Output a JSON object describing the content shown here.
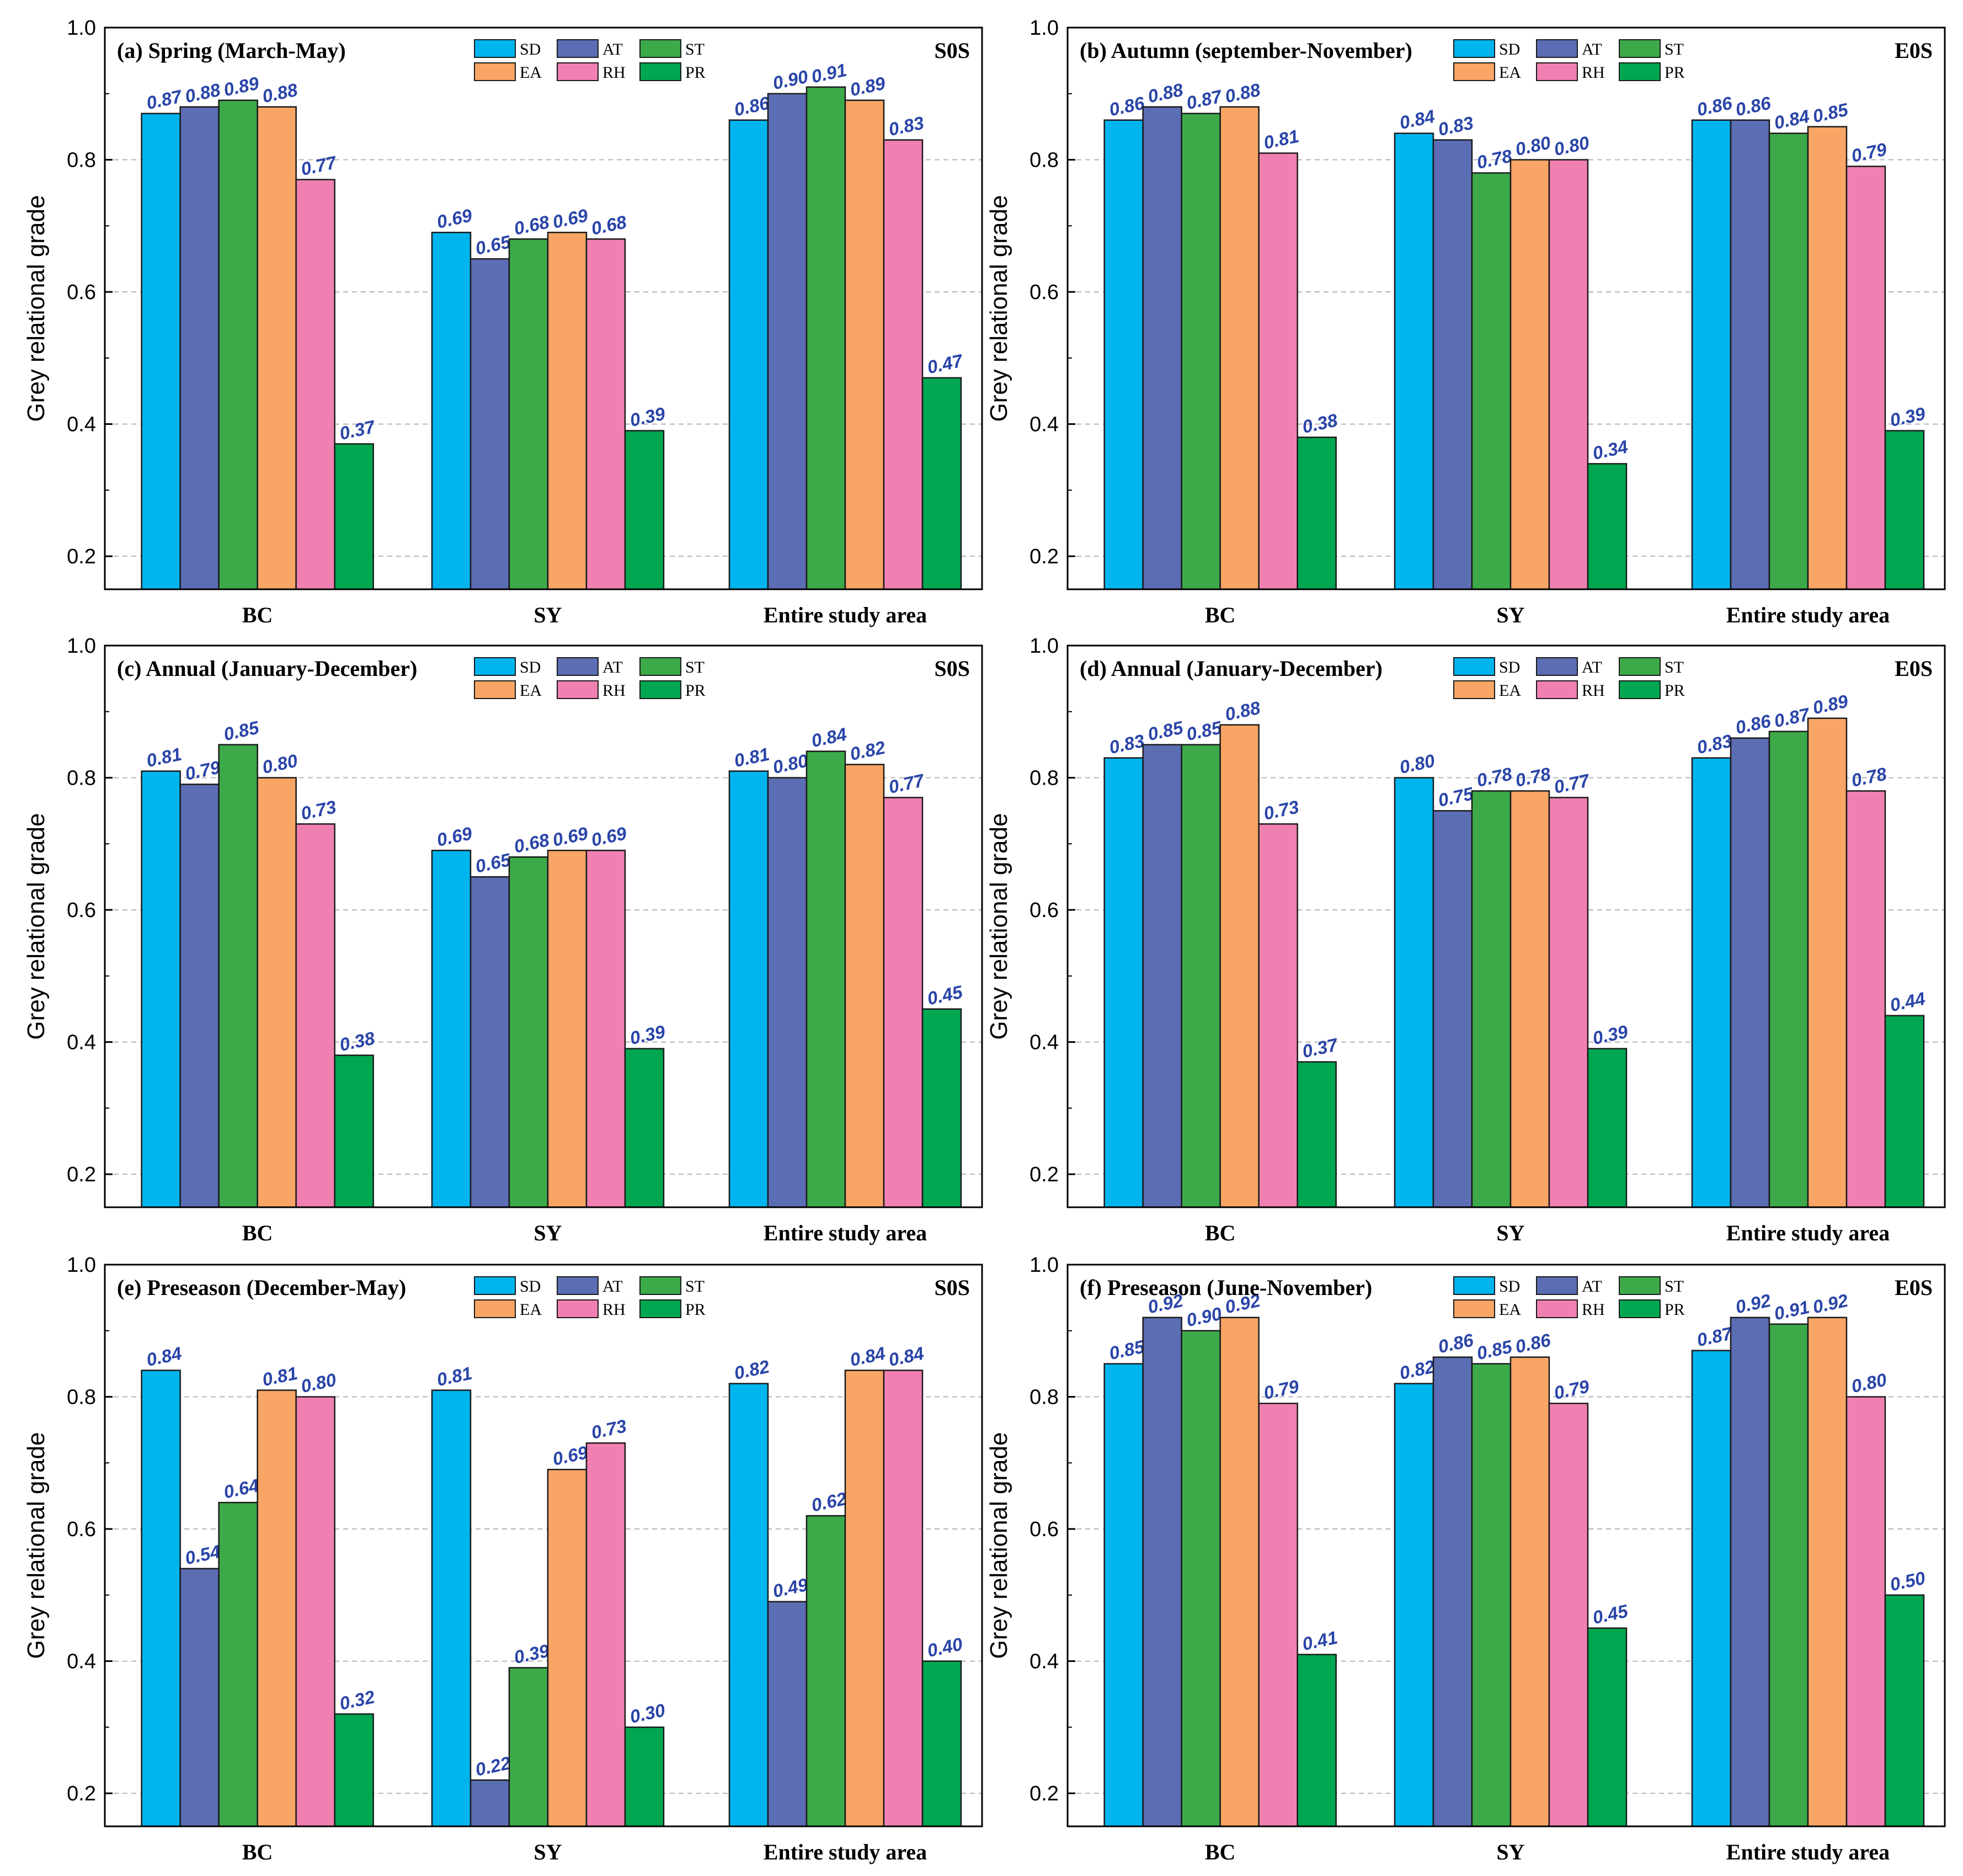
{
  "colors": {
    "SD": "#00b4ee",
    "AT": "#5b6db3",
    "ST": "#3daa4a",
    "EA": "#f8a565",
    "RH": "#f180b2",
    "PR": "#00a650"
  },
  "series_names": [
    "SD",
    "AT",
    "ST",
    "EA",
    "RH",
    "PR"
  ],
  "chart_data": [
    {
      "type": "bar",
      "title": "(a)  Spring (March-May)",
      "tag": "S0S",
      "ylabel": "Grey relational grade",
      "ylim": [
        0.15,
        1.0
      ],
      "yticks": [
        "0.2",
        "0.4",
        "0.6",
        "0.8",
        "1.0"
      ],
      "grid": "dashed",
      "legend": "top-center",
      "categories": [
        "BC",
        "SY",
        "Entire study area"
      ],
      "series": [
        {
          "name": "SD",
          "values": [
            0.87,
            0.69,
            0.86
          ]
        },
        {
          "name": "AT",
          "values": [
            0.88,
            0.65,
            0.9
          ]
        },
        {
          "name": "ST",
          "values": [
            0.89,
            0.68,
            0.91
          ]
        },
        {
          "name": "EA",
          "values": [
            0.88,
            0.69,
            0.89
          ]
        },
        {
          "name": "RH",
          "values": [
            0.77,
            0.68,
            0.83
          ]
        },
        {
          "name": "PR",
          "values": [
            0.37,
            0.39,
            0.47
          ]
        }
      ]
    },
    {
      "type": "bar",
      "title": "(b)  Autumn (september-November)",
      "tag": "E0S",
      "ylabel": "Grey relational grade",
      "ylim": [
        0.15,
        1.0
      ],
      "yticks": [
        "0.2",
        "0.4",
        "0.6",
        "0.8",
        "1.0"
      ],
      "grid": "dashed",
      "legend": "top-center",
      "categories": [
        "BC",
        "SY",
        "Entire study area"
      ],
      "series": [
        {
          "name": "SD",
          "values": [
            0.86,
            0.84,
            0.86
          ]
        },
        {
          "name": "AT",
          "values": [
            0.88,
            0.83,
            0.86
          ]
        },
        {
          "name": "ST",
          "values": [
            0.87,
            0.78,
            0.84
          ]
        },
        {
          "name": "EA",
          "values": [
            0.88,
            0.8,
            0.85
          ]
        },
        {
          "name": "RH",
          "values": [
            0.81,
            0.8,
            0.79
          ]
        },
        {
          "name": "PR",
          "values": [
            0.38,
            0.34,
            0.39
          ]
        }
      ]
    },
    {
      "type": "bar",
      "title": "(c)  Annual (January-December)",
      "tag": "S0S",
      "ylabel": "Grey relational grade",
      "ylim": [
        0.15,
        1.0
      ],
      "yticks": [
        "0.2",
        "0.4",
        "0.6",
        "0.8",
        "1.0"
      ],
      "grid": "dashed",
      "legend": "top-center",
      "categories": [
        "BC",
        "SY",
        "Entire study area"
      ],
      "series": [
        {
          "name": "SD",
          "values": [
            0.81,
            0.69,
            0.81
          ]
        },
        {
          "name": "AT",
          "values": [
            0.79,
            0.65,
            0.8
          ]
        },
        {
          "name": "ST",
          "values": [
            0.85,
            0.68,
            0.84
          ]
        },
        {
          "name": "EA",
          "values": [
            0.8,
            0.69,
            0.82
          ]
        },
        {
          "name": "RH",
          "values": [
            0.73,
            0.69,
            0.77
          ]
        },
        {
          "name": "PR",
          "values": [
            0.38,
            0.39,
            0.45
          ]
        }
      ]
    },
    {
      "type": "bar",
      "title": "(d)  Annual (January-December)",
      "tag": "E0S",
      "ylabel": "Grey relational grade",
      "ylim": [
        0.15,
        1.0
      ],
      "yticks": [
        "0.2",
        "0.4",
        "0.6",
        "0.8",
        "1.0"
      ],
      "grid": "dashed",
      "legend": "top-center",
      "categories": [
        "BC",
        "SY",
        "Entire study area"
      ],
      "series": [
        {
          "name": "SD",
          "values": [
            0.83,
            0.8,
            0.83
          ]
        },
        {
          "name": "AT",
          "values": [
            0.85,
            0.75,
            0.86
          ]
        },
        {
          "name": "ST",
          "values": [
            0.85,
            0.78,
            0.87
          ]
        },
        {
          "name": "EA",
          "values": [
            0.88,
            0.78,
            0.89
          ]
        },
        {
          "name": "RH",
          "values": [
            0.73,
            0.77,
            0.78
          ]
        },
        {
          "name": "PR",
          "values": [
            0.37,
            0.39,
            0.44
          ]
        }
      ]
    },
    {
      "type": "bar",
      "title": "(e)  Preseason (December-May)",
      "tag": "S0S",
      "ylabel": "Grey relational grade",
      "ylim": [
        0.15,
        1.0
      ],
      "yticks": [
        "0.2",
        "0.4",
        "0.6",
        "0.8",
        "1.0"
      ],
      "grid": "dashed",
      "legend": "top-center",
      "categories": [
        "BC",
        "SY",
        "Entire study area"
      ],
      "series": [
        {
          "name": "SD",
          "values": [
            0.84,
            0.81,
            0.82
          ]
        },
        {
          "name": "AT",
          "values": [
            0.54,
            0.22,
            0.49
          ]
        },
        {
          "name": "ST",
          "values": [
            0.64,
            0.39,
            0.62
          ]
        },
        {
          "name": "EA",
          "values": [
            0.81,
            0.69,
            0.84
          ]
        },
        {
          "name": "RH",
          "values": [
            0.8,
            0.73,
            0.84
          ]
        },
        {
          "name": "PR",
          "values": [
            0.32,
            0.3,
            0.4
          ]
        }
      ]
    },
    {
      "type": "bar",
      "title": "(f)  Preseason (June-November)",
      "tag": "E0S",
      "ylabel": "Grey relational grade",
      "ylim": [
        0.15,
        1.0
      ],
      "yticks": [
        "0.2",
        "0.4",
        "0.6",
        "0.8",
        "1.0"
      ],
      "grid": "dashed",
      "legend": "top-center",
      "categories": [
        "BC",
        "SY",
        "Entire study area"
      ],
      "series": [
        {
          "name": "SD",
          "values": [
            0.85,
            0.82,
            0.87
          ]
        },
        {
          "name": "AT",
          "values": [
            0.92,
            0.86,
            0.92
          ]
        },
        {
          "name": "ST",
          "values": [
            0.9,
            0.85,
            0.91
          ]
        },
        {
          "name": "EA",
          "values": [
            0.92,
            0.86,
            0.92
          ]
        },
        {
          "name": "RH",
          "values": [
            0.79,
            0.79,
            0.8
          ]
        },
        {
          "name": "PR",
          "values": [
            0.41,
            0.45,
            0.5
          ]
        }
      ]
    }
  ]
}
